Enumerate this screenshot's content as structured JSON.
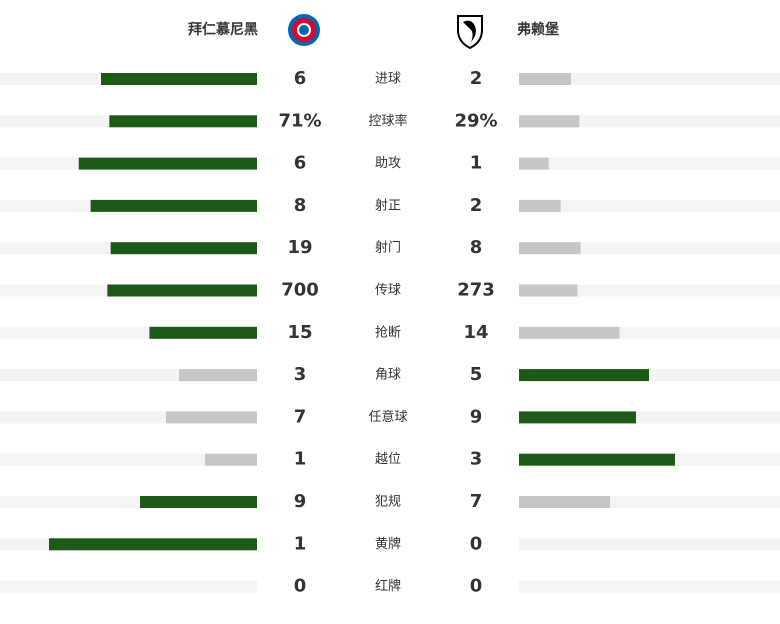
{
  "home": {
    "name": "拜仁慕尼黑"
  },
  "away": {
    "name": "弗赖堡"
  },
  "colors": {
    "leading": "#1e5a17",
    "trailing": "#c6c6c6",
    "track": "#f4f4f4"
  },
  "stats": [
    {
      "label": "进球",
      "home": 6,
      "away": 2
    },
    {
      "label": "控球率",
      "home": 71,
      "away": 29,
      "home_label": "71%",
      "away_label": "29%"
    },
    {
      "label": "助攻",
      "home": 6,
      "away": 1
    },
    {
      "label": "射正",
      "home": 8,
      "away": 2
    },
    {
      "label": "射门",
      "home": 19,
      "away": 8
    },
    {
      "label": "传球",
      "home": 700,
      "away": 273
    },
    {
      "label": "抢断",
      "home": 15,
      "away": 14
    },
    {
      "label": "角球",
      "home": 3,
      "away": 5
    },
    {
      "label": "任意球",
      "home": 7,
      "away": 9
    },
    {
      "label": "越位",
      "home": 1,
      "away": 3
    },
    {
      "label": "犯规",
      "home": 9,
      "away": 7
    },
    {
      "label": "黄牌",
      "home": 1,
      "away": 0
    },
    {
      "label": "红牌",
      "home": 0,
      "away": 0
    }
  ]
}
